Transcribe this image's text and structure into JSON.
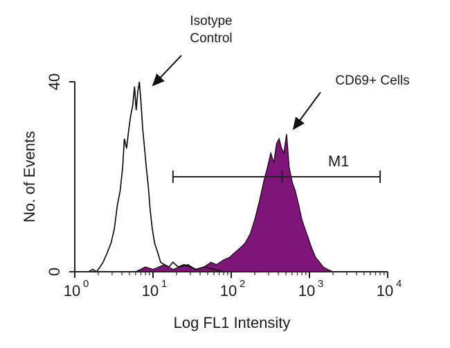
{
  "chart_data": {
    "type": "area",
    "xlabel": "Log FL1 Intensity",
    "ylabel": "No. of Events",
    "x_scale": "log",
    "xlim": [
      1,
      10000
    ],
    "ylim": [
      0,
      40
    ],
    "x_ticks": [
      {
        "value": 1,
        "base": "10",
        "exp": "0"
      },
      {
        "value": 10,
        "base": "10",
        "exp": "1"
      },
      {
        "value": 100,
        "base": "10",
        "exp": "2"
      },
      {
        "value": 1000,
        "base": "10",
        "exp": "3"
      },
      {
        "value": 10000,
        "base": "10",
        "exp": "4"
      }
    ],
    "y_ticks": [
      {
        "value": 0,
        "label": "0"
      },
      {
        "value": 40,
        "label": "40"
      }
    ],
    "series": [
      {
        "name": "Isotype Control",
        "style": "outline",
        "color": "#000000",
        "points": [
          [
            1.5,
            0
          ],
          [
            1.7,
            0.5
          ],
          [
            1.9,
            0
          ],
          [
            2.1,
            1
          ],
          [
            2.3,
            2
          ],
          [
            2.6,
            4
          ],
          [
            2.9,
            6
          ],
          [
            3.2,
            9
          ],
          [
            3.5,
            14
          ],
          [
            3.8,
            17
          ],
          [
            4.1,
            22
          ],
          [
            4.3,
            28
          ],
          [
            4.6,
            26
          ],
          [
            4.9,
            30
          ],
          [
            5.2,
            33
          ],
          [
            5.5,
            35
          ],
          [
            5.8,
            39
          ],
          [
            6.1,
            34
          ],
          [
            6.4,
            38
          ],
          [
            6.7,
            40
          ],
          [
            7.0,
            36
          ],
          [
            7.4,
            30
          ],
          [
            7.8,
            26
          ],
          [
            8.2,
            22
          ],
          [
            8.7,
            18
          ],
          [
            9.2,
            13
          ],
          [
            9.8,
            9
          ],
          [
            10.5,
            6
          ],
          [
            11.5,
            4
          ],
          [
            12.5,
            2
          ],
          [
            14,
            1.5
          ],
          [
            16,
            1
          ],
          [
            18,
            2
          ],
          [
            21,
            1
          ],
          [
            25,
            1.5
          ],
          [
            30,
            1
          ],
          [
            36,
            0.5
          ],
          [
            45,
            1
          ],
          [
            60,
            0.5
          ],
          [
            80,
            0
          ]
        ]
      },
      {
        "name": "CD69+ Cells",
        "style": "filled",
        "color": "#7f1578",
        "points": [
          [
            6,
            0
          ],
          [
            8,
            1
          ],
          [
            10,
            0.5
          ],
          [
            14,
            1.5
          ],
          [
            18,
            0.5
          ],
          [
            22,
            1
          ],
          [
            28,
            1.5
          ],
          [
            35,
            0.5
          ],
          [
            45,
            1
          ],
          [
            55,
            2
          ],
          [
            65,
            1.5
          ],
          [
            80,
            2.5
          ],
          [
            95,
            3
          ],
          [
            110,
            4
          ],
          [
            130,
            5
          ],
          [
            150,
            6
          ],
          [
            175,
            8
          ],
          [
            200,
            11
          ],
          [
            230,
            15
          ],
          [
            260,
            19
          ],
          [
            290,
            22
          ],
          [
            320,
            25
          ],
          [
            350,
            23
          ],
          [
            380,
            27
          ],
          [
            410,
            28
          ],
          [
            440,
            26
          ],
          [
            470,
            25
          ],
          [
            510,
            29
          ],
          [
            550,
            22
          ],
          [
            600,
            19
          ],
          [
            660,
            17
          ],
          [
            730,
            14
          ],
          [
            800,
            11
          ],
          [
            880,
            9
          ],
          [
            970,
            7
          ],
          [
            1070,
            5
          ],
          [
            1200,
            3
          ],
          [
            1350,
            2
          ],
          [
            1500,
            1
          ],
          [
            1700,
            0.5
          ],
          [
            2000,
            0
          ]
        ]
      }
    ],
    "gate": {
      "label": "M1",
      "x_start": 18,
      "x_end": 8000,
      "y": 20
    },
    "annotations": [
      {
        "text_lines": [
          "Isotype",
          "Control"
        ],
        "points_to": "Isotype Control"
      },
      {
        "text_lines": [
          "CD69+ Cells"
        ],
        "points_to": "CD69+ Cells"
      }
    ]
  }
}
